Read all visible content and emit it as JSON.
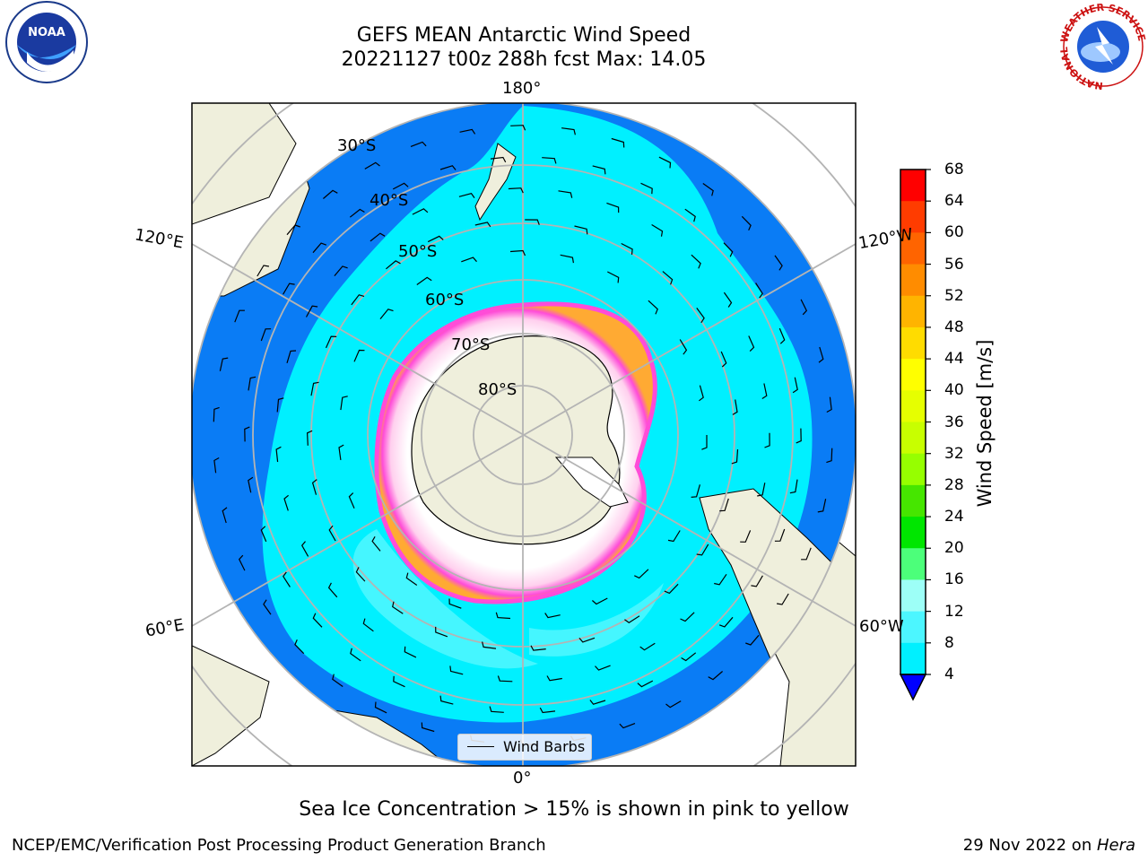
{
  "title": {
    "line1": "GEFS MEAN Antarctic Wind Speed",
    "line2": "20221127 t00z 288h fcst   Max: 14.05"
  },
  "map": {
    "projection": "south-polar-stereographic",
    "center_lat": -90,
    "meridian_labels": {
      "top": "180°",
      "bottom": "0°",
      "left_upper": "120°E",
      "left_lower": "60°E",
      "right_upper": "120°W",
      "right_lower": "60°W"
    },
    "parallel_labels": [
      "30°S",
      "40°S",
      "50°S",
      "60°S",
      "70°S",
      "80°S"
    ],
    "colors": {
      "land": "#efefdc",
      "ocean_dark": "#0a7cf5",
      "ocean_cyan": "#00f0ff",
      "ocean_light": "#4cf6ff",
      "ice_white": "#ffffff",
      "ice_edge_pink": "#ff4cd8",
      "ice_edge_orange": "#ffaa33",
      "gridline": "#b4b4b4"
    }
  },
  "colorbar": {
    "label": "Wind Speed [m/s]",
    "ticks": [
      "68",
      "64",
      "60",
      "56",
      "52",
      "48",
      "44",
      "40",
      "36",
      "32",
      "28",
      "24",
      "20",
      "16",
      "12",
      "8",
      "4"
    ],
    "colors": [
      "#ff0000",
      "#ff3c00",
      "#ff6400",
      "#ff8c00",
      "#ffb400",
      "#ffdc00",
      "#ffff00",
      "#e6ff00",
      "#c8ff00",
      "#96ff00",
      "#46e600",
      "#00e600",
      "#4cff7a",
      "#9dfff7",
      "#4cf6ff",
      "#00f0ff",
      "#0a7cf5"
    ],
    "under_color": "#0000ff"
  },
  "legend": {
    "label": "Wind Barbs"
  },
  "caption": "Sea Ice Concentration > 15% is shown in pink to yellow",
  "footer": {
    "left": "NCEP/EMC/Verification Post Processing Product Generation Branch",
    "right_prefix": "29 Nov 2022 on ",
    "right_host": "Hera"
  },
  "logos": {
    "left": "NOAA",
    "right_ring_text": "NATIONAL WEATHER SERVICE"
  }
}
